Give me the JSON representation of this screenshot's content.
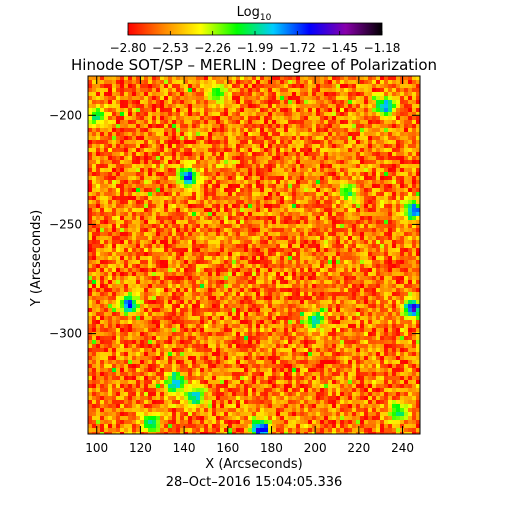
{
  "chart_data": {
    "type": "heatmap",
    "title": "Hinode SOT/SP – MERLIN : Degree of Polarization",
    "colorbar": {
      "label_base": "Log",
      "label_sub": "10",
      "ticks": [
        "−2.80",
        "−2.53",
        "−2.26",
        "−1.99",
        "−1.72",
        "−1.45",
        "−1.18"
      ],
      "range": [
        -2.8,
        -1.18
      ],
      "colors": [
        "#ff0000",
        "#ff8800",
        "#ffff00",
        "#00ff00",
        "#00ccff",
        "#0000ff",
        "#8800aa",
        "#000000"
      ]
    },
    "xlabel": "X (Arcseconds)",
    "ylabel": "Y (Arcseconds)",
    "xlim": [
      96,
      248
    ],
    "ylim": [
      -346,
      -182
    ],
    "xticks": [
      100,
      120,
      140,
      160,
      180,
      200,
      220,
      240
    ],
    "yticks": [
      -200,
      -250,
      -300
    ],
    "ytick_labels": [
      "−200",
      "−250",
      "−300"
    ],
    "background_value": -2.6,
    "patches": [
      {
        "x": 175,
        "y": -343,
        "v": -1.3
      },
      {
        "x": 142,
        "y": -228,
        "v": -1.55
      },
      {
        "x": 115,
        "y": -286,
        "v": -1.6
      },
      {
        "x": 136,
        "y": -322,
        "v": -1.65
      },
      {
        "x": 145,
        "y": -328,
        "v": -1.7
      },
      {
        "x": 245,
        "y": -288,
        "v": -1.45
      },
      {
        "x": 232,
        "y": -196,
        "v": -1.6
      },
      {
        "x": 245,
        "y": -243,
        "v": -1.5
      },
      {
        "x": 200,
        "y": -293,
        "v": -1.8
      },
      {
        "x": 100,
        "y": -200,
        "v": -1.9
      },
      {
        "x": 215,
        "y": -235,
        "v": -1.9
      },
      {
        "x": 155,
        "y": -190,
        "v": -2.0
      },
      {
        "x": 125,
        "y": -340,
        "v": -1.8
      },
      {
        "x": 238,
        "y": -335,
        "v": -1.9
      }
    ],
    "timestamp": "28–Oct–2016 15:04:05.336"
  }
}
